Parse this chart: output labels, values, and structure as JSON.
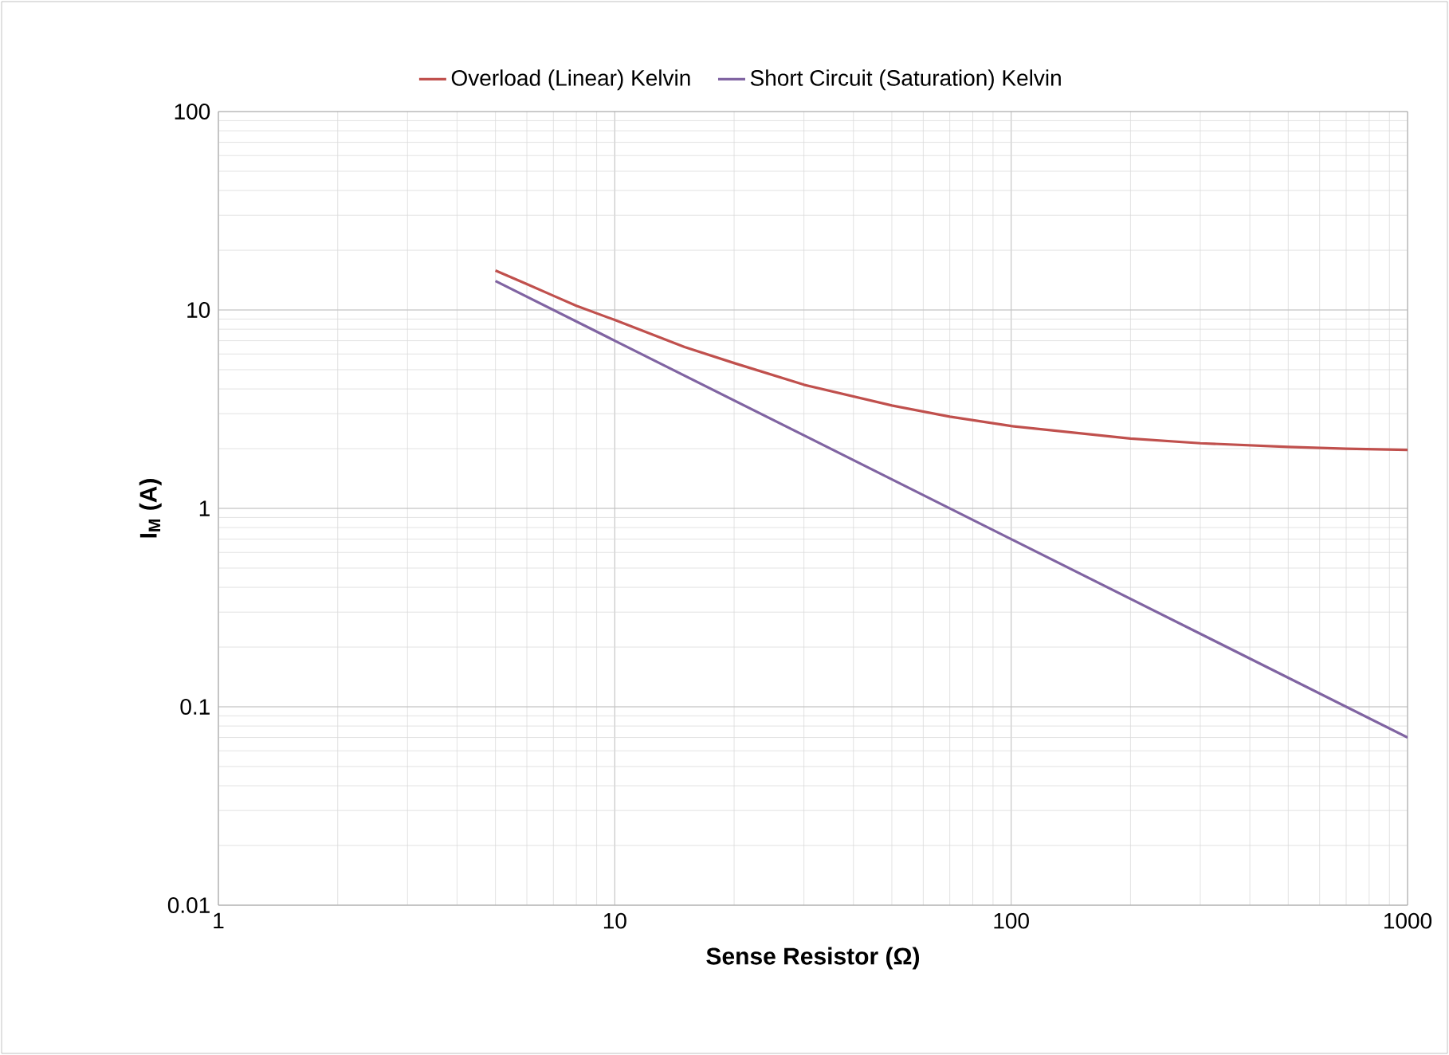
{
  "chart_data": {
    "type": "line",
    "xlabel": "Sense Resistor (Ω)",
    "ylabel": "I$_{M}$ (A)",
    "log": "xy",
    "grid": true,
    "legend": "top",
    "marker": "none",
    "line_style": "solid",
    "xlim": [
      1,
      1000
    ],
    "xticks": [
      1,
      10,
      100,
      1000
    ],
    "ylim": [
      0.01,
      100
    ],
    "yticks": [
      0.01,
      0.1,
      1,
      10,
      100
    ],
    "series": [
      {
        "name": "Overload (Linear) Kelvin",
        "color": "#c0504d",
        "x": [
          5,
          6,
          7,
          8,
          10,
          15,
          20,
          30,
          50,
          70,
          100,
          200,
          300,
          500,
          700,
          1000
        ],
        "values": [
          15.8,
          13.5,
          11.8,
          10.5,
          8.9,
          6.5,
          5.4,
          4.2,
          3.3,
          2.9,
          2.6,
          2.25,
          2.13,
          2.04,
          2.0,
          1.97
        ]
      },
      {
        "name": "Short Circuit (Saturation) Kelvin",
        "color": "#8064a2",
        "x": [
          5,
          10,
          100,
          1000
        ],
        "values": [
          14,
          7,
          0.7,
          0.07
        ]
      }
    ]
  }
}
